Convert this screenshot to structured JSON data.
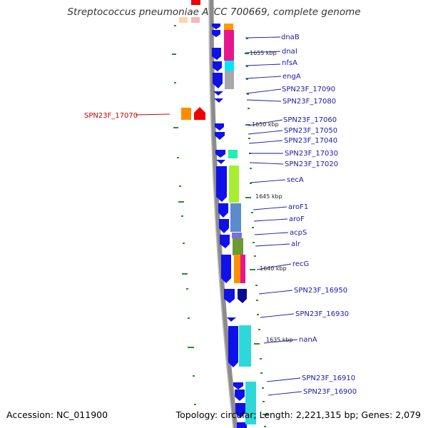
{
  "title": "Streptococcus pneumoniae ATCC 700669, complete genome",
  "footer": {
    "accession": "Accession: NC_011900",
    "summary": "Topology: circular; Length: 2,221,315 bp; Genes: 2,079"
  },
  "colors": {
    "backbone": "#8c8c8c",
    "gene_arrow": "#1010e8",
    "gene_arrow_dark": "#0a0a90",
    "label_text": "#1a1aa6",
    "highlight_label": "#cc0000",
    "tick": "#2e8b2e"
  },
  "kbp_ticks": [
    "1655 kbp",
    "1650 kbp",
    "1645 kbp",
    "1640 kbp",
    "1635 kbp"
  ],
  "genes": [
    {
      "name": "dnaB"
    },
    {
      "name": "dnaI"
    },
    {
      "name": "nfsA"
    },
    {
      "name": "engA"
    },
    {
      "name": "SPN23F_17090"
    },
    {
      "name": "SPN23F_17080"
    },
    {
      "name": "SPN23F_17060"
    },
    {
      "name": "SPN23F_17050"
    },
    {
      "name": "SPN23F_17040"
    },
    {
      "name": "SPN23F_17030"
    },
    {
      "name": "SPN23F_17020"
    },
    {
      "name": "secA"
    },
    {
      "name": "aroF1"
    },
    {
      "name": "aroF"
    },
    {
      "name": "acpS"
    },
    {
      "name": "alr"
    },
    {
      "name": "recG"
    },
    {
      "name": "SPN23F_16950"
    },
    {
      "name": "SPN23F_16930"
    },
    {
      "name": "nanA"
    },
    {
      "name": "SPN23F_16910"
    },
    {
      "name": "SPN23F_16900"
    }
  ],
  "highlighted_gene": {
    "name": "SPN23F_17070"
  }
}
